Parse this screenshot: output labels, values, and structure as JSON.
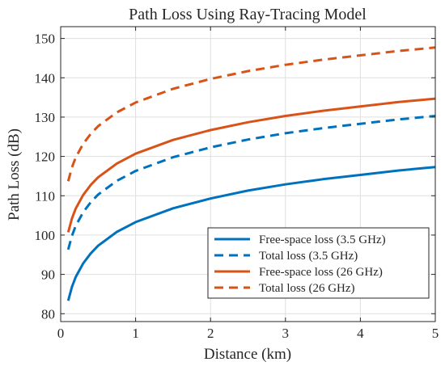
{
  "chart_data": {
    "type": "line",
    "title": "Path Loss Using Ray-Tracing Model",
    "xlabel": "Distance (km)",
    "ylabel": "Path Loss (dB)",
    "xlim": [
      0,
      5
    ],
    "ylim": [
      78,
      153
    ],
    "xticks": [
      0,
      1,
      2,
      3,
      4,
      5
    ],
    "yticks": [
      80,
      90,
      100,
      110,
      120,
      130,
      140,
      150
    ],
    "grid": true,
    "legend_position": "bottom-right",
    "x": [
      0.1,
      0.15,
      0.2,
      0.3,
      0.4,
      0.5,
      0.75,
      1.0,
      1.5,
      2.0,
      2.5,
      3.0,
      3.5,
      4.0,
      4.5,
      5.0
    ],
    "series": [
      {
        "name": "Free-space loss (3.5 GHz)",
        "color": "#0072BD",
        "style": "solid",
        "values": [
          83.3,
          86.8,
          89.3,
          92.8,
          95.3,
          97.3,
          100.8,
          103.3,
          106.8,
          109.3,
          111.3,
          112.9,
          114.2,
          115.3,
          116.4,
          117.3
        ]
      },
      {
        "name": "Total loss (3.5 GHz)",
        "color": "#0072BD",
        "style": "dashed",
        "values": [
          96.3,
          99.8,
          102.3,
          105.8,
          108.3,
          110.3,
          113.8,
          116.3,
          119.8,
          122.3,
          124.3,
          125.9,
          127.2,
          128.3,
          129.4,
          130.3
        ]
      },
      {
        "name": "Free-space loss (26 GHz)",
        "color": "#D95319",
        "style": "solid",
        "values": [
          100.7,
          104.2,
          106.7,
          110.2,
          112.7,
          114.7,
          118.2,
          120.7,
          124.2,
          126.7,
          128.7,
          130.3,
          131.6,
          132.7,
          133.8,
          134.7
        ]
      },
      {
        "name": "Total loss (26 GHz)",
        "color": "#D95319",
        "style": "dashed",
        "values": [
          113.7,
          117.2,
          119.7,
          123.2,
          125.7,
          127.7,
          131.2,
          133.7,
          137.2,
          139.7,
          141.7,
          143.3,
          144.6,
          145.7,
          146.8,
          147.7
        ]
      }
    ]
  }
}
